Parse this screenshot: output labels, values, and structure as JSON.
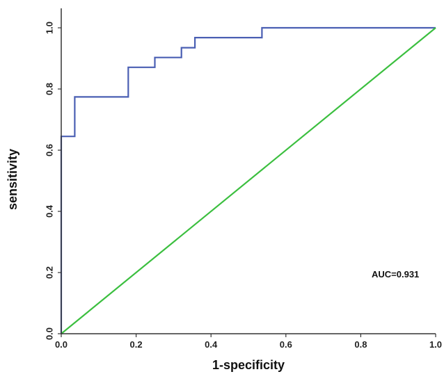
{
  "chart_data": {
    "type": "line",
    "title": "",
    "xlabel": "1-specificity",
    "ylabel": "sensitivity",
    "xlim": [
      0,
      1
    ],
    "ylim": [
      0,
      1.05
    ],
    "x_ticks": [
      "0.0",
      "0.2",
      "0.4",
      "0.6",
      "0.8",
      "1.0"
    ],
    "y_ticks": [
      "0.0",
      "0.2",
      "0.4",
      "0.6",
      "0.8",
      "1.0"
    ],
    "grid": false,
    "legend": "none",
    "annotation": "AUC=0.931",
    "series": [
      {
        "color": "#4a5fb3",
        "step": true,
        "x": [
          0,
          0,
          0.036,
          0.036,
          0.179,
          0.179,
          0.25,
          0.25,
          0.321,
          0.321,
          0.357,
          0.357,
          0.536,
          0.536,
          1.0
        ],
        "y": [
          0,
          0.645,
          0.645,
          0.774,
          0.774,
          0.871,
          0.871,
          0.903,
          0.903,
          0.935,
          0.935,
          0.968,
          0.968,
          1.0,
          1.0
        ]
      },
      {
        "color": "#3bbf3f",
        "step": false,
        "x": [
          0,
          1
        ],
        "y": [
          0,
          1
        ]
      }
    ]
  }
}
